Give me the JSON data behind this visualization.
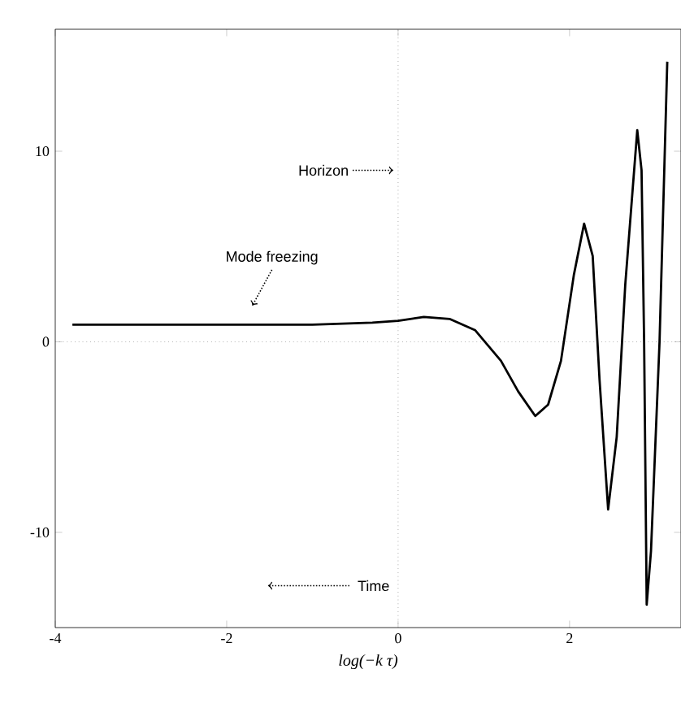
{
  "chart_data": {
    "type": "line",
    "xlabel": "log(−k τ)",
    "x": [
      -3.8,
      -2,
      -1,
      -0.3,
      0,
      0.3,
      0.6,
      0.9,
      1.2,
      1.4,
      1.6,
      1.75,
      1.9,
      2.05,
      2.17,
      2.27,
      2.35,
      2.45,
      2.55,
      2.65,
      2.79,
      2.84,
      2.87,
      2.9,
      2.95,
      3.05,
      3.14
    ],
    "series": [
      {
        "color": "#000000",
        "values": [
          0.9,
          0.9,
          0.9,
          1.0,
          1.1,
          1.3,
          1.2,
          0.6,
          -1.0,
          -2.6,
          -3.9,
          -3.3,
          -1.0,
          3.5,
          6.2,
          4.5,
          -2,
          -8.8,
          -5,
          3,
          11.1,
          9,
          0,
          -13.8,
          -11,
          0,
          14.7
        ]
      }
    ],
    "xlim": [
      -4,
      3.3
    ],
    "ylim": [
      -15,
      16.4
    ],
    "xticks": [
      -4,
      -2,
      0,
      2
    ],
    "yticks": [
      -10,
      0,
      10
    ],
    "ref_lines": [
      {
        "axis": "x",
        "value": 0,
        "line_style": "dotted",
        "label": "Horizon"
      },
      {
        "axis": "y",
        "value": 0,
        "line_style": "dotted"
      }
    ],
    "annotations": [
      {
        "text": "Mode freezing",
        "x": -1.7,
        "y": 1.9
      },
      "Time"
    ],
    "grid": false,
    "marker": "none",
    "line_style": "solid"
  }
}
